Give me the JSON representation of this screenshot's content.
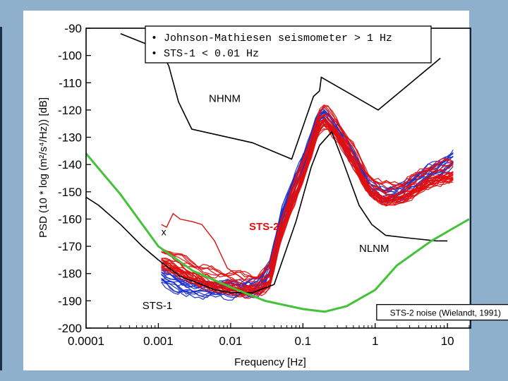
{
  "legend_box": {
    "item1": "• Johnson-Mathiesen seismometer > 1 Hz",
    "item2": "• STS-1  < 0.01 Hz"
  },
  "colors": {
    "sts2": "#e01010",
    "sts1": "#1a2fcc",
    "model": "#000000",
    "sts2_noise": "#44c23a"
  },
  "chart_data": {
    "type": "line",
    "title": "",
    "xlabel": "Frequency    [Hz]",
    "ylabel": "PSD (10 * log (m²/s⁴/Hz))    [dB]",
    "xscale": "log",
    "xlim": [
      0.0001,
      20
    ],
    "ylim": [
      -200,
      -90
    ],
    "x_ticks": [
      {
        "value": 0.0001,
        "label": "0.0001"
      },
      {
        "value": 0.001,
        "label": "0.001"
      },
      {
        "value": 0.01,
        "label": "0.01"
      },
      {
        "value": 0.1,
        "label": "0.1"
      },
      {
        "value": 1,
        "label": "1"
      },
      {
        "value": 10,
        "label": "10"
      }
    ],
    "y_ticks": [
      {
        "value": -90,
        "label": "-90"
      },
      {
        "value": -100,
        "label": "-100"
      },
      {
        "value": -110,
        "label": "-110"
      },
      {
        "value": -120,
        "label": "-120"
      },
      {
        "value": -130,
        "label": "-130"
      },
      {
        "value": -140,
        "label": "-140"
      },
      {
        "value": -150,
        "label": "-150"
      },
      {
        "value": -160,
        "label": "-160"
      },
      {
        "value": -170,
        "label": "-170"
      },
      {
        "value": -180,
        "label": "-180"
      },
      {
        "value": -190,
        "label": "-190"
      },
      {
        "value": -200,
        "label": "-200"
      }
    ],
    "series": [
      {
        "name": "NHNM",
        "color": "#000000",
        "points": [
          [
            0.0003,
            -92
          ],
          [
            0.0011,
            -98
          ],
          [
            0.0014,
            -104
          ],
          [
            0.0019,
            -117
          ],
          [
            0.0029,
            -127
          ],
          [
            0.02,
            -132
          ],
          [
            0.07,
            -138
          ],
          [
            0.14,
            -115
          ],
          [
            0.17,
            -113
          ],
          [
            0.18,
            -108
          ],
          [
            1.1,
            -120
          ],
          [
            8,
            -101
          ]
        ]
      },
      {
        "name": "NLNM",
        "color": "#000000",
        "points": [
          [
            0.0001,
            -152
          ],
          [
            0.00015,
            -155
          ],
          [
            0.0003,
            -162
          ],
          [
            0.0006,
            -170
          ],
          [
            0.001,
            -175
          ],
          [
            0.002,
            -181
          ],
          [
            0.004,
            -184
          ],
          [
            0.006,
            -186
          ],
          [
            0.01,
            -187
          ],
          [
            0.02,
            -187
          ],
          [
            0.04,
            -184
          ],
          [
            0.08,
            -161
          ],
          [
            0.13,
            -141
          ],
          [
            0.17,
            -133
          ],
          [
            0.25,
            -128
          ],
          [
            0.35,
            -138
          ],
          [
            0.6,
            -155
          ],
          [
            0.9,
            -162
          ],
          [
            1.4,
            -166
          ],
          [
            3,
            -167
          ],
          [
            7,
            -168
          ],
          [
            10,
            -168
          ]
        ]
      },
      {
        "name": "STS-2 noise (Wielandt, 1991)",
        "color": "#44c23a",
        "points": [
          [
            0.0001,
            -136
          ],
          [
            0.0003,
            -151
          ],
          [
            0.001,
            -170
          ],
          [
            0.003,
            -179
          ],
          [
            0.01,
            -185
          ],
          [
            0.03,
            -190
          ],
          [
            0.1,
            -193
          ],
          [
            0.2,
            -194
          ],
          [
            0.4,
            -192
          ],
          [
            1,
            -186
          ],
          [
            2,
            -177
          ],
          [
            6,
            -168
          ],
          [
            20,
            -160
          ]
        ]
      }
    ],
    "groups": [
      {
        "name": "STS-2",
        "color": "#e01010",
        "freq_range": [
          0.0011,
          12
        ]
      },
      {
        "name": "STS-1",
        "color": "#1a2fcc",
        "freq_range": [
          0.0011,
          12
        ]
      }
    ],
    "annotations": [
      {
        "text": "NHNM",
        "x": 0.005,
        "y": -117,
        "color": "#000000",
        "boxed": false
      },
      {
        "text": "NLNM",
        "x": 0.6,
        "y": -172,
        "color": "#000000",
        "boxed": false
      },
      {
        "text": "STS-2",
        "x": 0.018,
        "y": -164,
        "color": "#e01010",
        "boxed": false
      },
      {
        "text": "STS-1",
        "x": 0.0006,
        "y": -193,
        "color": "#000000",
        "boxed": false
      },
      {
        "text": "x",
        "x": 0.0011,
        "y": -166,
        "color": "#000000",
        "boxed": false
      },
      {
        "text": "STS-2 noise (Wielandt, 1991)",
        "x": 1.2,
        "y": -195.5,
        "color": "#000000",
        "boxed": true
      }
    ],
    "grid": false
  }
}
